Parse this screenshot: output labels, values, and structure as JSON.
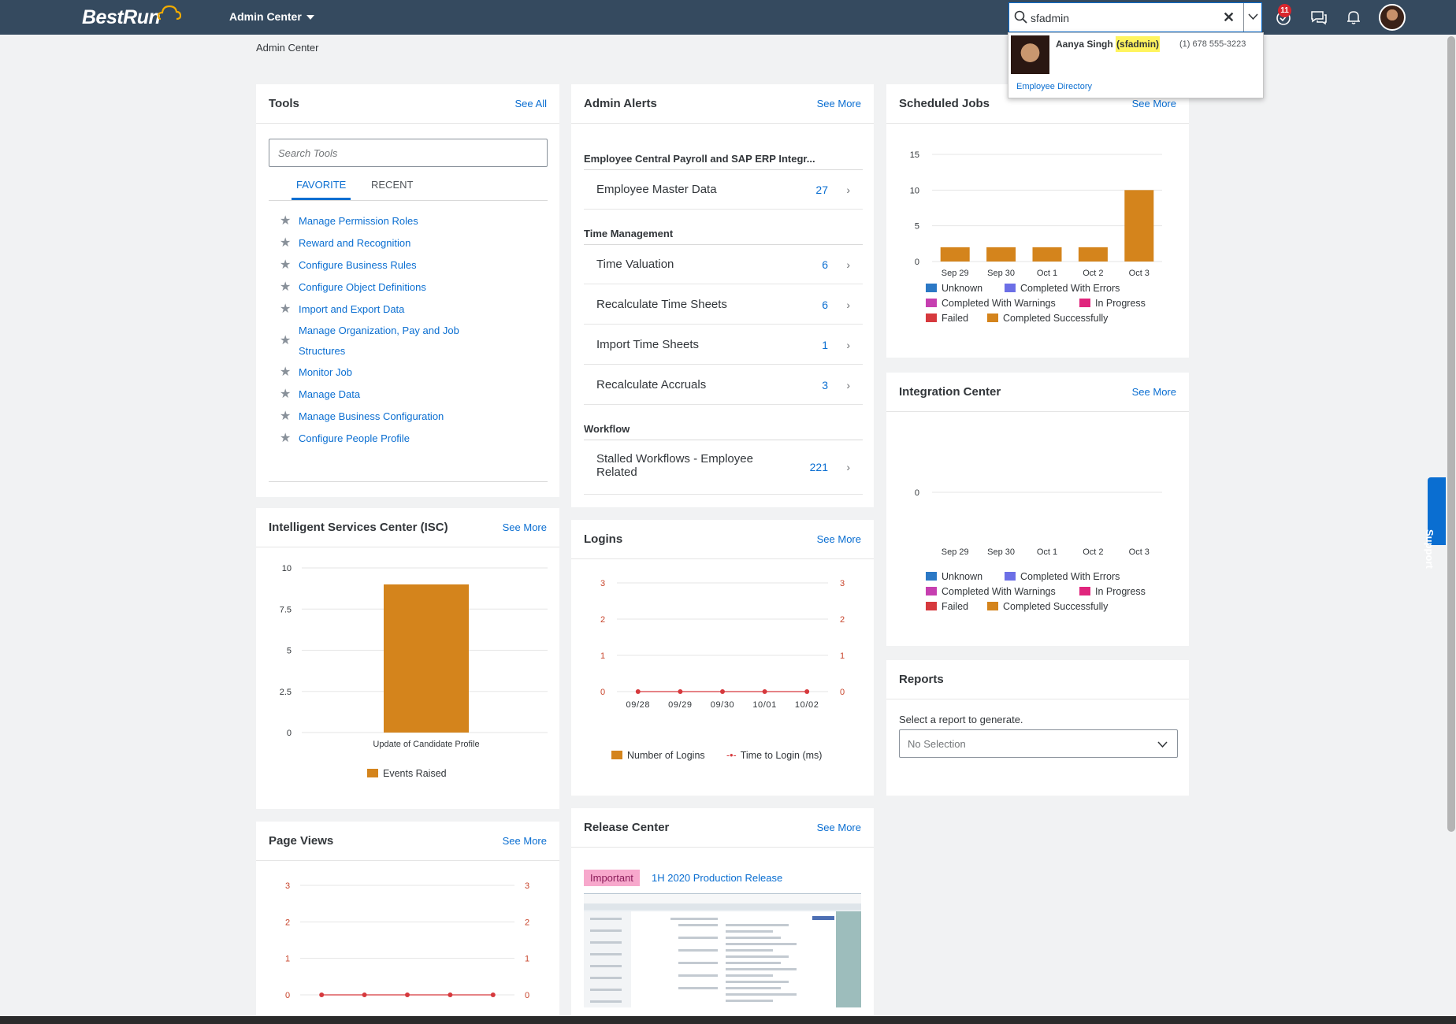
{
  "shell": {
    "logo": "BestRun",
    "app_menu": "Admin Center",
    "search_value": "sfadmin",
    "notification_count": "11"
  },
  "search_popup": {
    "name": "Aanya Singh",
    "username": "(sfadmin)",
    "phone": "(1) 678 555-3223",
    "directory_link": "Employee Directory"
  },
  "breadcrumb": "Admin Center",
  "tools": {
    "title": "Tools",
    "see_all": "See All",
    "search_placeholder": "Search Tools",
    "tabs": [
      "FAVORITE",
      "RECENT"
    ],
    "items": [
      "Manage Permission Roles",
      "Reward and Recognition",
      "Configure Business Rules",
      "Configure Object Definitions",
      "Import and Export Data",
      "Manage Organization, Pay and Job Structures",
      "Monitor Job",
      "Manage Data",
      "Manage Business Configuration",
      "Configure People Profile"
    ]
  },
  "admin_alerts": {
    "title": "Admin Alerts",
    "see_more": "See More",
    "sections": [
      {
        "title": "Employee Central Payroll and SAP ERP Integr...",
        "rows": [
          {
            "label": "Employee Master Data",
            "count": "27"
          }
        ]
      },
      {
        "title": "Time Management",
        "rows": [
          {
            "label": "Time Valuation",
            "count": "6"
          },
          {
            "label": "Recalculate Time Sheets",
            "count": "6"
          },
          {
            "label": "Import Time Sheets",
            "count": "1"
          },
          {
            "label": "Recalculate Accruals",
            "count": "3"
          }
        ]
      },
      {
        "title": "Workflow",
        "rows": [
          {
            "label": "Stalled Workflows - Employee Related",
            "count": "221"
          }
        ]
      }
    ]
  },
  "scheduled_jobs": {
    "title": "Scheduled Jobs",
    "see_more": "See More",
    "legend": [
      "Unknown",
      "Completed With Errors",
      "Completed With Warnings",
      "In Progress",
      "Failed",
      "Completed Successfully"
    ]
  },
  "integration_center": {
    "title": "Integration Center",
    "see_more": "See More",
    "legend": [
      "Unknown",
      "Completed With Errors",
      "Completed With Warnings",
      "In Progress",
      "Failed",
      "Completed Successfully"
    ]
  },
  "reports": {
    "title": "Reports",
    "label": "Select a report to generate.",
    "select_value": "No Selection"
  },
  "isc": {
    "title": "Intelligent Services Center (ISC)",
    "see_more": "See More",
    "legend": "Events Raised"
  },
  "logins": {
    "title": "Logins",
    "see_more": "See More",
    "legend_bar": "Number of Logins",
    "legend_line": "Time to Login (ms)"
  },
  "page_views": {
    "title": "Page Views",
    "see_more": "See More"
  },
  "release_center": {
    "title": "Release Center",
    "see_more": "See More",
    "tag": "Important",
    "link": "1H 2020 Production Release"
  },
  "support": "Support",
  "colors": {
    "shell": "#354a5f",
    "link": "#0a6ed1",
    "unknown": "#2b78c5",
    "completed_with_errors": "#6c6fe6",
    "completed_with_warnings": "#c63fb0",
    "in_progress": "#e0257d",
    "failed": "#d6393d",
    "completed_successfully": "#d4841c"
  },
  "chart_data": [
    {
      "id": "scheduled_jobs",
      "type": "bar",
      "categories": [
        "Sep 29",
        "Sep 30",
        "Oct 1",
        "Oct 2",
        "Oct 3"
      ],
      "series": [
        {
          "name": "Completed Successfully",
          "values": [
            2,
            2,
            2,
            2,
            10
          ]
        }
      ],
      "ylim": [
        0,
        15
      ],
      "yticks": [
        0,
        5,
        10,
        15
      ]
    },
    {
      "id": "integration_center",
      "type": "bar",
      "categories": [
        "Sep 29",
        "Sep 30",
        "Oct 1",
        "Oct 2",
        "Oct 3"
      ],
      "series": [
        {
          "name": "Completed Successfully",
          "values": [
            0,
            0,
            0,
            0,
            0
          ]
        }
      ],
      "yticks": [
        0
      ]
    },
    {
      "id": "isc",
      "type": "bar",
      "categories": [
        "Update of Candidate Profile"
      ],
      "series": [
        {
          "name": "Events Raised",
          "values": [
            9
          ]
        }
      ],
      "ylim": [
        0,
        10
      ],
      "yticks": [
        "0",
        "2.5",
        "5",
        "7.5",
        "10"
      ]
    },
    {
      "id": "logins",
      "type": "line",
      "x": [
        "09/28",
        "09/29",
        "09/30",
        "10/01",
        "10/02"
      ],
      "series": [
        {
          "name": "Number of Logins",
          "values": [
            0,
            0,
            0,
            0,
            0
          ]
        },
        {
          "name": "Time to Login (ms)",
          "values": [
            0,
            0,
            0,
            0,
            0
          ]
        }
      ],
      "ylim": [
        0,
        3
      ],
      "yticks": [
        0,
        1,
        2,
        3
      ]
    },
    {
      "id": "page_views",
      "type": "line",
      "series": [
        {
          "values": [
            0,
            0,
            0,
            0,
            0
          ]
        }
      ],
      "ylim": [
        0,
        3
      ],
      "yticks": [
        0,
        1,
        2,
        3
      ]
    }
  ]
}
